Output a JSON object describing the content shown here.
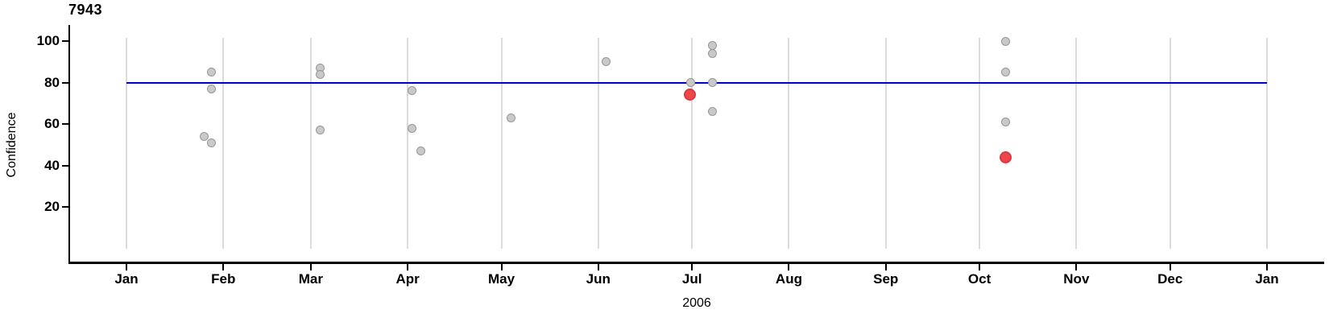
{
  "title": "7943",
  "axes": {
    "y_label": "Confidence",
    "x_label": "2006"
  },
  "colors": {
    "reference_line": "#0000cd",
    "grid_line": "#dcdcdc",
    "point_fill": "#c9c9c9",
    "point_stroke": "#979797",
    "highlight_fill": "#ee464b",
    "highlight_stroke": "#d8393f",
    "axis": "#000000"
  },
  "chart_data": {
    "type": "scatter",
    "title": "7943",
    "xlabel": "2006",
    "ylabel": "Confidence",
    "x_axis": {
      "unit": "day_of_year_2006",
      "range": [
        0,
        365
      ],
      "ticks": [
        {
          "label": "Jan",
          "day": 0
        },
        {
          "label": "Feb",
          "day": 31
        },
        {
          "label": "Mar",
          "day": 59
        },
        {
          "label": "Apr",
          "day": 90
        },
        {
          "label": "May",
          "day": 120
        },
        {
          "label": "Jun",
          "day": 151
        },
        {
          "label": "Jul",
          "day": 181
        },
        {
          "label": "Aug",
          "day": 212
        },
        {
          "label": "Sep",
          "day": 243
        },
        {
          "label": "Oct",
          "day": 273
        },
        {
          "label": "Nov",
          "day": 304
        },
        {
          "label": "Dec",
          "day": 334
        },
        {
          "label": "Jan",
          "day": 365
        }
      ]
    },
    "y_axis": {
      "ticks": [
        20,
        40,
        60,
        80,
        100
      ],
      "label": "Confidence"
    },
    "reference_line": {
      "y": 80,
      "span_days": [
        0,
        365
      ]
    },
    "grid": "vertical-month-lines",
    "legend": "none",
    "series": [
      {
        "name": "confidence-points",
        "style": "gray",
        "points": [
          {
            "day": 25.0,
            "approx_date": "2006-01-26",
            "confidence": 54
          },
          {
            "day": 27.1,
            "approx_date": "2006-01-28",
            "confidence": 85
          },
          {
            "day": 27.1,
            "approx_date": "2006-01-28",
            "confidence": 77
          },
          {
            "day": 27.3,
            "approx_date": "2006-01-28",
            "confidence": 51
          },
          {
            "day": 61.9,
            "approx_date": "2006-03-04",
            "confidence": 87
          },
          {
            "day": 62.1,
            "approx_date": "2006-03-04",
            "confidence": 84
          },
          {
            "day": 62.1,
            "approx_date": "2006-03-04",
            "confidence": 57
          },
          {
            "day": 91.3,
            "approx_date": "2006-04-02",
            "confidence": 76
          },
          {
            "day": 91.5,
            "approx_date": "2006-04-02",
            "confidence": 58
          },
          {
            "day": 94.1,
            "approx_date": "2006-04-05",
            "confidence": 47
          },
          {
            "day": 123.2,
            "approx_date": "2006-05-04",
            "confidence": 63
          },
          {
            "day": 153.4,
            "approx_date": "2006-06-03",
            "confidence": 90
          },
          {
            "day": 180.5,
            "approx_date": "2006-06-30",
            "confidence": 80
          },
          {
            "day": 187.4,
            "approx_date": "2006-07-07",
            "confidence": 98
          },
          {
            "day": 187.4,
            "approx_date": "2006-07-07",
            "confidence": 94
          },
          {
            "day": 187.4,
            "approx_date": "2006-07-07",
            "confidence": 80
          },
          {
            "day": 187.4,
            "approx_date": "2006-07-07",
            "confidence": 66
          },
          {
            "day": 281.3,
            "approx_date": "2006-10-09",
            "confidence": 100
          },
          {
            "day": 281.3,
            "approx_date": "2006-10-09",
            "confidence": 85
          },
          {
            "day": 281.3,
            "approx_date": "2006-10-09",
            "confidence": 61
          }
        ]
      },
      {
        "name": "highlighted-points",
        "style": "red",
        "points": [
          {
            "day": 180.2,
            "approx_date": "2006-06-30",
            "confidence": 74
          },
          {
            "day": 281.3,
            "approx_date": "2006-10-09",
            "confidence": 44
          }
        ]
      }
    ]
  }
}
